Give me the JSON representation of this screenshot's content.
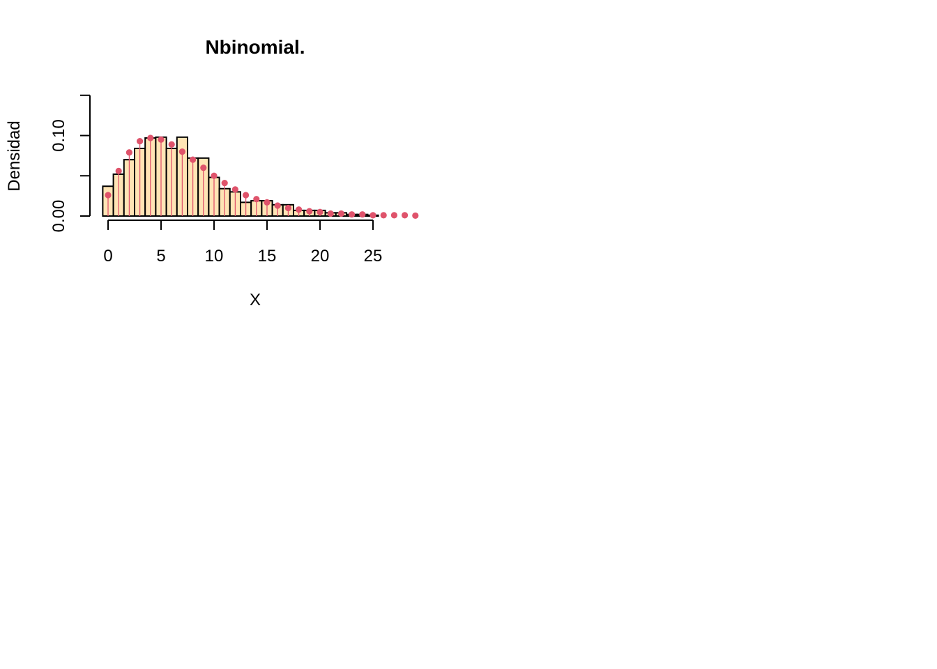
{
  "chart_data": {
    "type": "bar",
    "title": "Nbinomial.",
    "xlabel": "X",
    "ylabel": "Densidad",
    "xlim": [
      -0.5,
      29
    ],
    "ylim": [
      0,
      0.15
    ],
    "x_ticks": [
      0,
      5,
      10,
      15,
      20,
      25
    ],
    "x_tick_labels": [
      "0",
      "5",
      "10",
      "15",
      "20",
      "25"
    ],
    "y_ticks": [
      0,
      0.05,
      0.1,
      0.15
    ],
    "y_tick_labels": [
      "0.00",
      "",
      "0.10",
      ""
    ],
    "grid": false,
    "colors": {
      "bar_fill": "#FFE4B5",
      "bar_stroke": "#000000",
      "points": "#DF536B",
      "spikes": "#DF536B"
    },
    "series": [
      {
        "kind": "histogram",
        "x": [
          0,
          1,
          2,
          3,
          4,
          5,
          6,
          7,
          8,
          9,
          10,
          11,
          12,
          13,
          14,
          15,
          16,
          17,
          18,
          19,
          20,
          21,
          22,
          23,
          24,
          25
        ],
        "values": [
          0.037,
          0.052,
          0.07,
          0.084,
          0.097,
          0.098,
          0.084,
          0.098,
          0.072,
          0.072,
          0.048,
          0.034,
          0.03,
          0.017,
          0.019,
          0.019,
          0.014,
          0.014,
          0.007,
          0.007,
          0.007,
          0.004,
          0.004,
          0.002,
          0.002,
          0.001
        ]
      },
      {
        "kind": "probability-points",
        "x": [
          0,
          1,
          2,
          3,
          4,
          5,
          6,
          7,
          8,
          9,
          10,
          11,
          12,
          13,
          14,
          15,
          16,
          17,
          18,
          19,
          20,
          21,
          22,
          23,
          24,
          25,
          26,
          27,
          28,
          29
        ],
        "values": [
          0.026,
          0.056,
          0.079,
          0.093,
          0.097,
          0.095,
          0.089,
          0.08,
          0.07,
          0.06,
          0.05,
          0.041,
          0.033,
          0.026,
          0.021,
          0.017,
          0.013,
          0.01,
          0.008,
          0.006,
          0.005,
          0.003,
          0.003,
          0.002,
          0.002,
          0.001,
          0.001,
          0.001,
          0.001,
          0.0005
        ]
      }
    ]
  }
}
